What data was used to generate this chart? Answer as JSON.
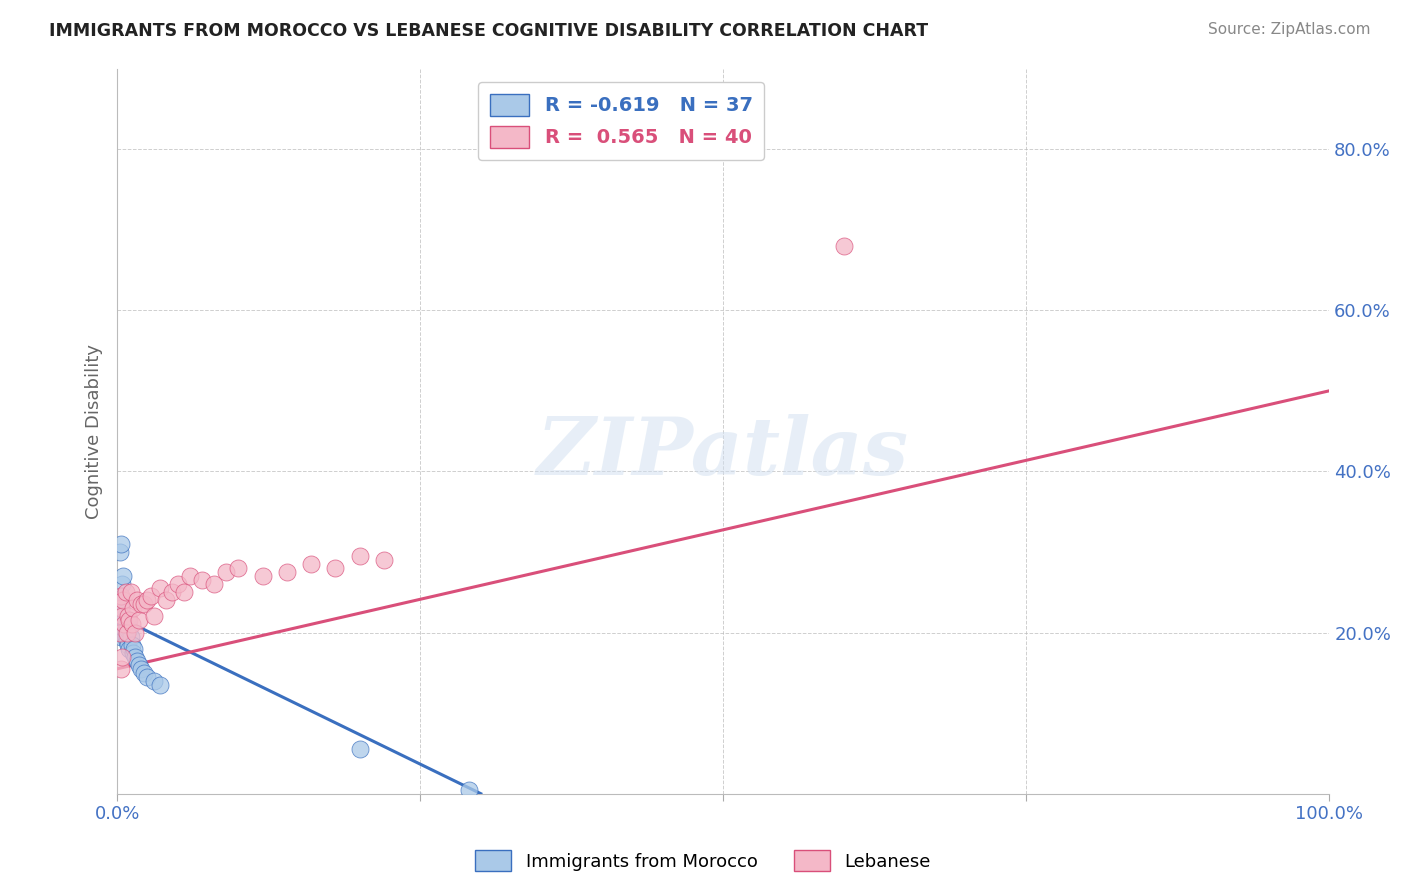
{
  "title": "IMMIGRANTS FROM MOROCCO VS LEBANESE COGNITIVE DISABILITY CORRELATION CHART",
  "source": "Source: ZipAtlas.com",
  "ylabel": "Cognitive Disability",
  "xlim": [
    0.0,
    1.0
  ],
  "ylim": [
    0.0,
    0.9
  ],
  "blue_R": -0.619,
  "blue_N": 37,
  "pink_R": 0.565,
  "pink_N": 40,
  "blue_label": "Immigrants from Morocco",
  "pink_label": "Lebanese",
  "blue_color": "#aac9e8",
  "pink_color": "#f4b8c8",
  "blue_line_color": "#3a6fbf",
  "pink_line_color": "#d94f7a",
  "background_color": "#ffffff",
  "watermark": "ZIPatlas",
  "blue_x": [
    0.001,
    0.002,
    0.002,
    0.003,
    0.003,
    0.003,
    0.003,
    0.004,
    0.004,
    0.005,
    0.005,
    0.006,
    0.006,
    0.007,
    0.007,
    0.008,
    0.008,
    0.009,
    0.009,
    0.01,
    0.01,
    0.011,
    0.012,
    0.013,
    0.014,
    0.015,
    0.016,
    0.018,
    0.02,
    0.022,
    0.025,
    0.03,
    0.035,
    0.2,
    0.29,
    0.002,
    0.003
  ],
  "blue_y": [
    0.225,
    0.215,
    0.24,
    0.195,
    0.22,
    0.23,
    0.245,
    0.2,
    0.26,
    0.21,
    0.27,
    0.205,
    0.215,
    0.195,
    0.21,
    0.19,
    0.205,
    0.185,
    0.215,
    0.18,
    0.205,
    0.195,
    0.185,
    0.175,
    0.18,
    0.17,
    0.165,
    0.16,
    0.155,
    0.15,
    0.145,
    0.14,
    0.135,
    0.055,
    0.005,
    0.3,
    0.31
  ],
  "pink_x": [
    0.002,
    0.003,
    0.003,
    0.004,
    0.005,
    0.006,
    0.007,
    0.008,
    0.009,
    0.01,
    0.011,
    0.012,
    0.013,
    0.015,
    0.016,
    0.018,
    0.02,
    0.022,
    0.025,
    0.028,
    0.03,
    0.035,
    0.04,
    0.045,
    0.05,
    0.055,
    0.06,
    0.07,
    0.08,
    0.09,
    0.1,
    0.12,
    0.14,
    0.16,
    0.18,
    0.2,
    0.22,
    0.6,
    0.003,
    0.004
  ],
  "pink_y": [
    0.2,
    0.23,
    0.245,
    0.22,
    0.24,
    0.21,
    0.25,
    0.2,
    0.22,
    0.215,
    0.25,
    0.21,
    0.23,
    0.2,
    0.24,
    0.215,
    0.235,
    0.235,
    0.24,
    0.245,
    0.22,
    0.255,
    0.24,
    0.25,
    0.26,
    0.25,
    0.27,
    0.265,
    0.26,
    0.275,
    0.28,
    0.27,
    0.275,
    0.285,
    0.28,
    0.295,
    0.29,
    0.68,
    0.155,
    0.17
  ],
  "blue_trend_x": [
    0.0,
    0.3
  ],
  "blue_trend_y": [
    0.22,
    0.0
  ],
  "pink_trend_x": [
    0.0,
    1.0
  ],
  "pink_trend_y": [
    0.155,
    0.5
  ],
  "yticks": [
    0.0,
    0.2,
    0.4,
    0.6,
    0.8
  ],
  "ytick_labels": [
    "",
    "20.0%",
    "40.0%",
    "60.0%",
    "80.0%"
  ],
  "xticks": [
    0.0,
    0.25,
    0.5,
    0.75,
    1.0
  ],
  "xtick_labels": [
    "0.0%",
    "",
    "",
    "",
    "100.0%"
  ]
}
